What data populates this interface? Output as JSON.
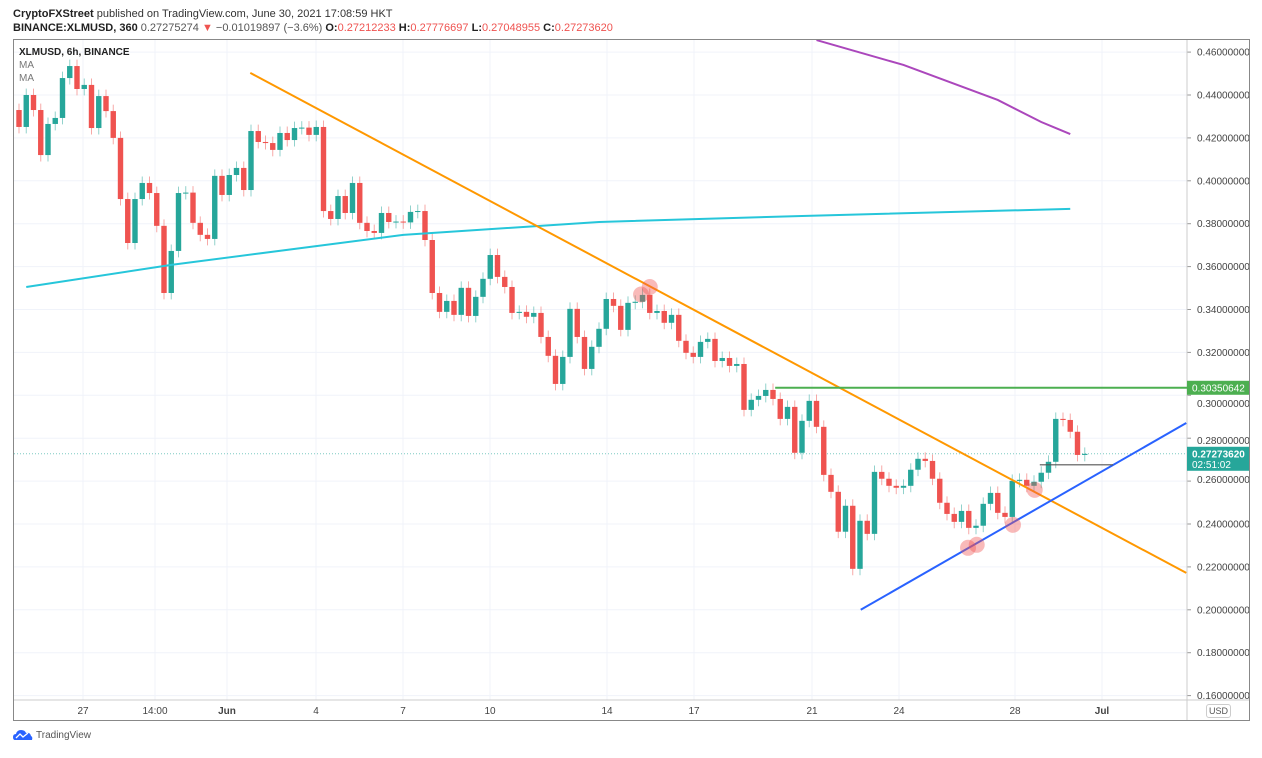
{
  "header": {
    "publisher": "CryptoFXStreet",
    "published_text": "published on TradingView.com, June 30, 2021 17:08:59 HKT",
    "symbol_line": "BINANCE:XLMUSD, 360",
    "last_price": "0.27275274",
    "change": "−0.01019897 (−3.6%)",
    "o_label": "O:",
    "o": "0.27212233",
    "h_label": "H:",
    "h": "0.27776697",
    "l_label": "L:",
    "l": "0.27048955",
    "c_label": "C:",
    "c": "0.27273620",
    "change_icon": "triangle-down-icon"
  },
  "legend": {
    "title": "XLMUSD, 6h, BINANCE",
    "ma1": "MA",
    "ma2": "MA"
  },
  "currency_badge": "USD",
  "footer": {
    "brand": "TradingView"
  },
  "colors": {
    "up": "#26a69a",
    "down": "#ef5350",
    "orange_trend": "#ff9800",
    "blue_trend": "#2962ff",
    "resistance": "#4caf50",
    "ma_fast": "#26c6da",
    "ma_slow": "#ab47bc",
    "marker": "#ef5350"
  },
  "chart_data": {
    "type": "candlestick",
    "symbol": "XLMUSD",
    "interval": "6h",
    "ylim": [
      0.155,
      0.468
    ],
    "y_ticks": [
      "0.46000000",
      "0.44000000",
      "0.42000000",
      "0.40000000",
      "0.38000000",
      "0.36000000",
      "0.34000000",
      "0.32000000",
      "0.30000000",
      "0.28000000",
      "0.26000000",
      "0.24000000",
      "0.22000000",
      "0.20000000",
      "0.18000000",
      "0.16000000"
    ],
    "x_ticks": [
      "27",
      "14:00",
      "Jun",
      "4",
      "7",
      "10",
      "14",
      "17",
      "21",
      "24",
      "28",
      "Jul"
    ],
    "grid": true,
    "first_open": 0.433,
    "closes": [
      0.4251,
      0.44,
      0.433,
      0.412,
      0.4265,
      0.4293,
      0.4479,
      0.4535,
      0.4428,
      0.4447,
      0.4246,
      0.4395,
      0.4325,
      0.42,
      0.3915,
      0.371,
      0.3915,
      0.399,
      0.3943,
      0.379,
      0.3477,
      0.3673,
      0.3943,
      0.3945,
      0.3804,
      0.3748,
      0.3729,
      0.4023,
      0.3934,
      0.4027,
      0.406,
      0.3957,
      0.4232,
      0.4181,
      0.4176,
      0.4144,
      0.4223,
      0.419,
      0.4246,
      0.4248,
      0.4214,
      0.4251,
      0.3859,
      0.3822,
      0.3929,
      0.385,
      0.399,
      0.3804,
      0.3766,
      0.3757,
      0.385,
      0.3808,
      0.381,
      0.3806,
      0.3855,
      0.3859,
      0.3724,
      0.3477,
      0.3389,
      0.344,
      0.3375,
      0.3501,
      0.337,
      0.3459,
      0.3543,
      0.3654,
      0.3552,
      0.3505,
      0.3384,
      0.3389,
      0.3366,
      0.3384,
      0.3272,
      0.3184,
      0.3053,
      0.3179,
      0.3403,
      0.3272,
      0.3123,
      0.3226,
      0.331,
      0.3449,
      0.3417,
      0.3305,
      0.3431,
      0.3436,
      0.3468,
      0.3384,
      0.3393,
      0.3338,
      0.3375,
      0.3254,
      0.3198,
      0.3179,
      0.3249,
      0.3263,
      0.316,
      0.3174,
      0.3137,
      0.3146,
      0.2932,
      0.2979,
      0.2997,
      0.3025,
      0.2983,
      0.289,
      0.2946,
      0.2732,
      0.2881,
      0.2974,
      0.2853,
      0.2629,
      0.255,
      0.2364,
      0.2485,
      0.2191,
      0.2415,
      0.2354,
      0.2643,
      0.2611,
      0.2578,
      0.2569,
      0.2578,
      0.2653,
      0.2704,
      0.2694,
      0.2611,
      0.2499,
      0.2447,
      0.241,
      0.2461,
      0.2382,
      0.2392,
      0.2494,
      0.2545,
      0.2452,
      0.2433,
      0.2601,
      0.2606,
      0.2578,
      0.2597,
      0.2639,
      0.269,
      0.289,
      0.2885,
      0.283,
      0.2722,
      0.2727
    ],
    "ma_fast": [
      [
        1,
        0.3505
      ],
      [
        21,
        0.3608
      ],
      [
        53,
        0.3748
      ],
      [
        80,
        0.3808
      ],
      [
        108,
        0.3836
      ],
      [
        145,
        0.3869
      ]
    ],
    "ma_slow": [
      [
        110,
        0.4656
      ],
      [
        122,
        0.454
      ],
      [
        135,
        0.4377
      ],
      [
        141,
        0.4274
      ],
      [
        145,
        0.4218
      ]
    ],
    "trendlines": [
      {
        "name": "descending",
        "from": [
          31.9,
          0.4503
        ],
        "to": [
          161,
          0.2172
        ]
      },
      {
        "name": "ascending",
        "from": [
          116.1,
          0.2
        ],
        "to": [
          161,
          0.2871
        ]
      }
    ],
    "resistance": {
      "value": 0.30350642,
      "label": "0.30350642",
      "from": 104.3
    },
    "short_level": {
      "value": 0.2676,
      "from": 140.8,
      "to": 150.9
    },
    "markers": [
      [
        85.8,
        0.347
      ],
      [
        87,
        0.3505
      ],
      [
        130.9,
        0.2289
      ],
      [
        132.1,
        0.2303
      ],
      [
        137.1,
        0.2396
      ],
      [
        140.1,
        0.2559
      ]
    ],
    "last": {
      "value": 0.2727362,
      "label": "0.27273620",
      "countdown": "02:51:02"
    }
  }
}
